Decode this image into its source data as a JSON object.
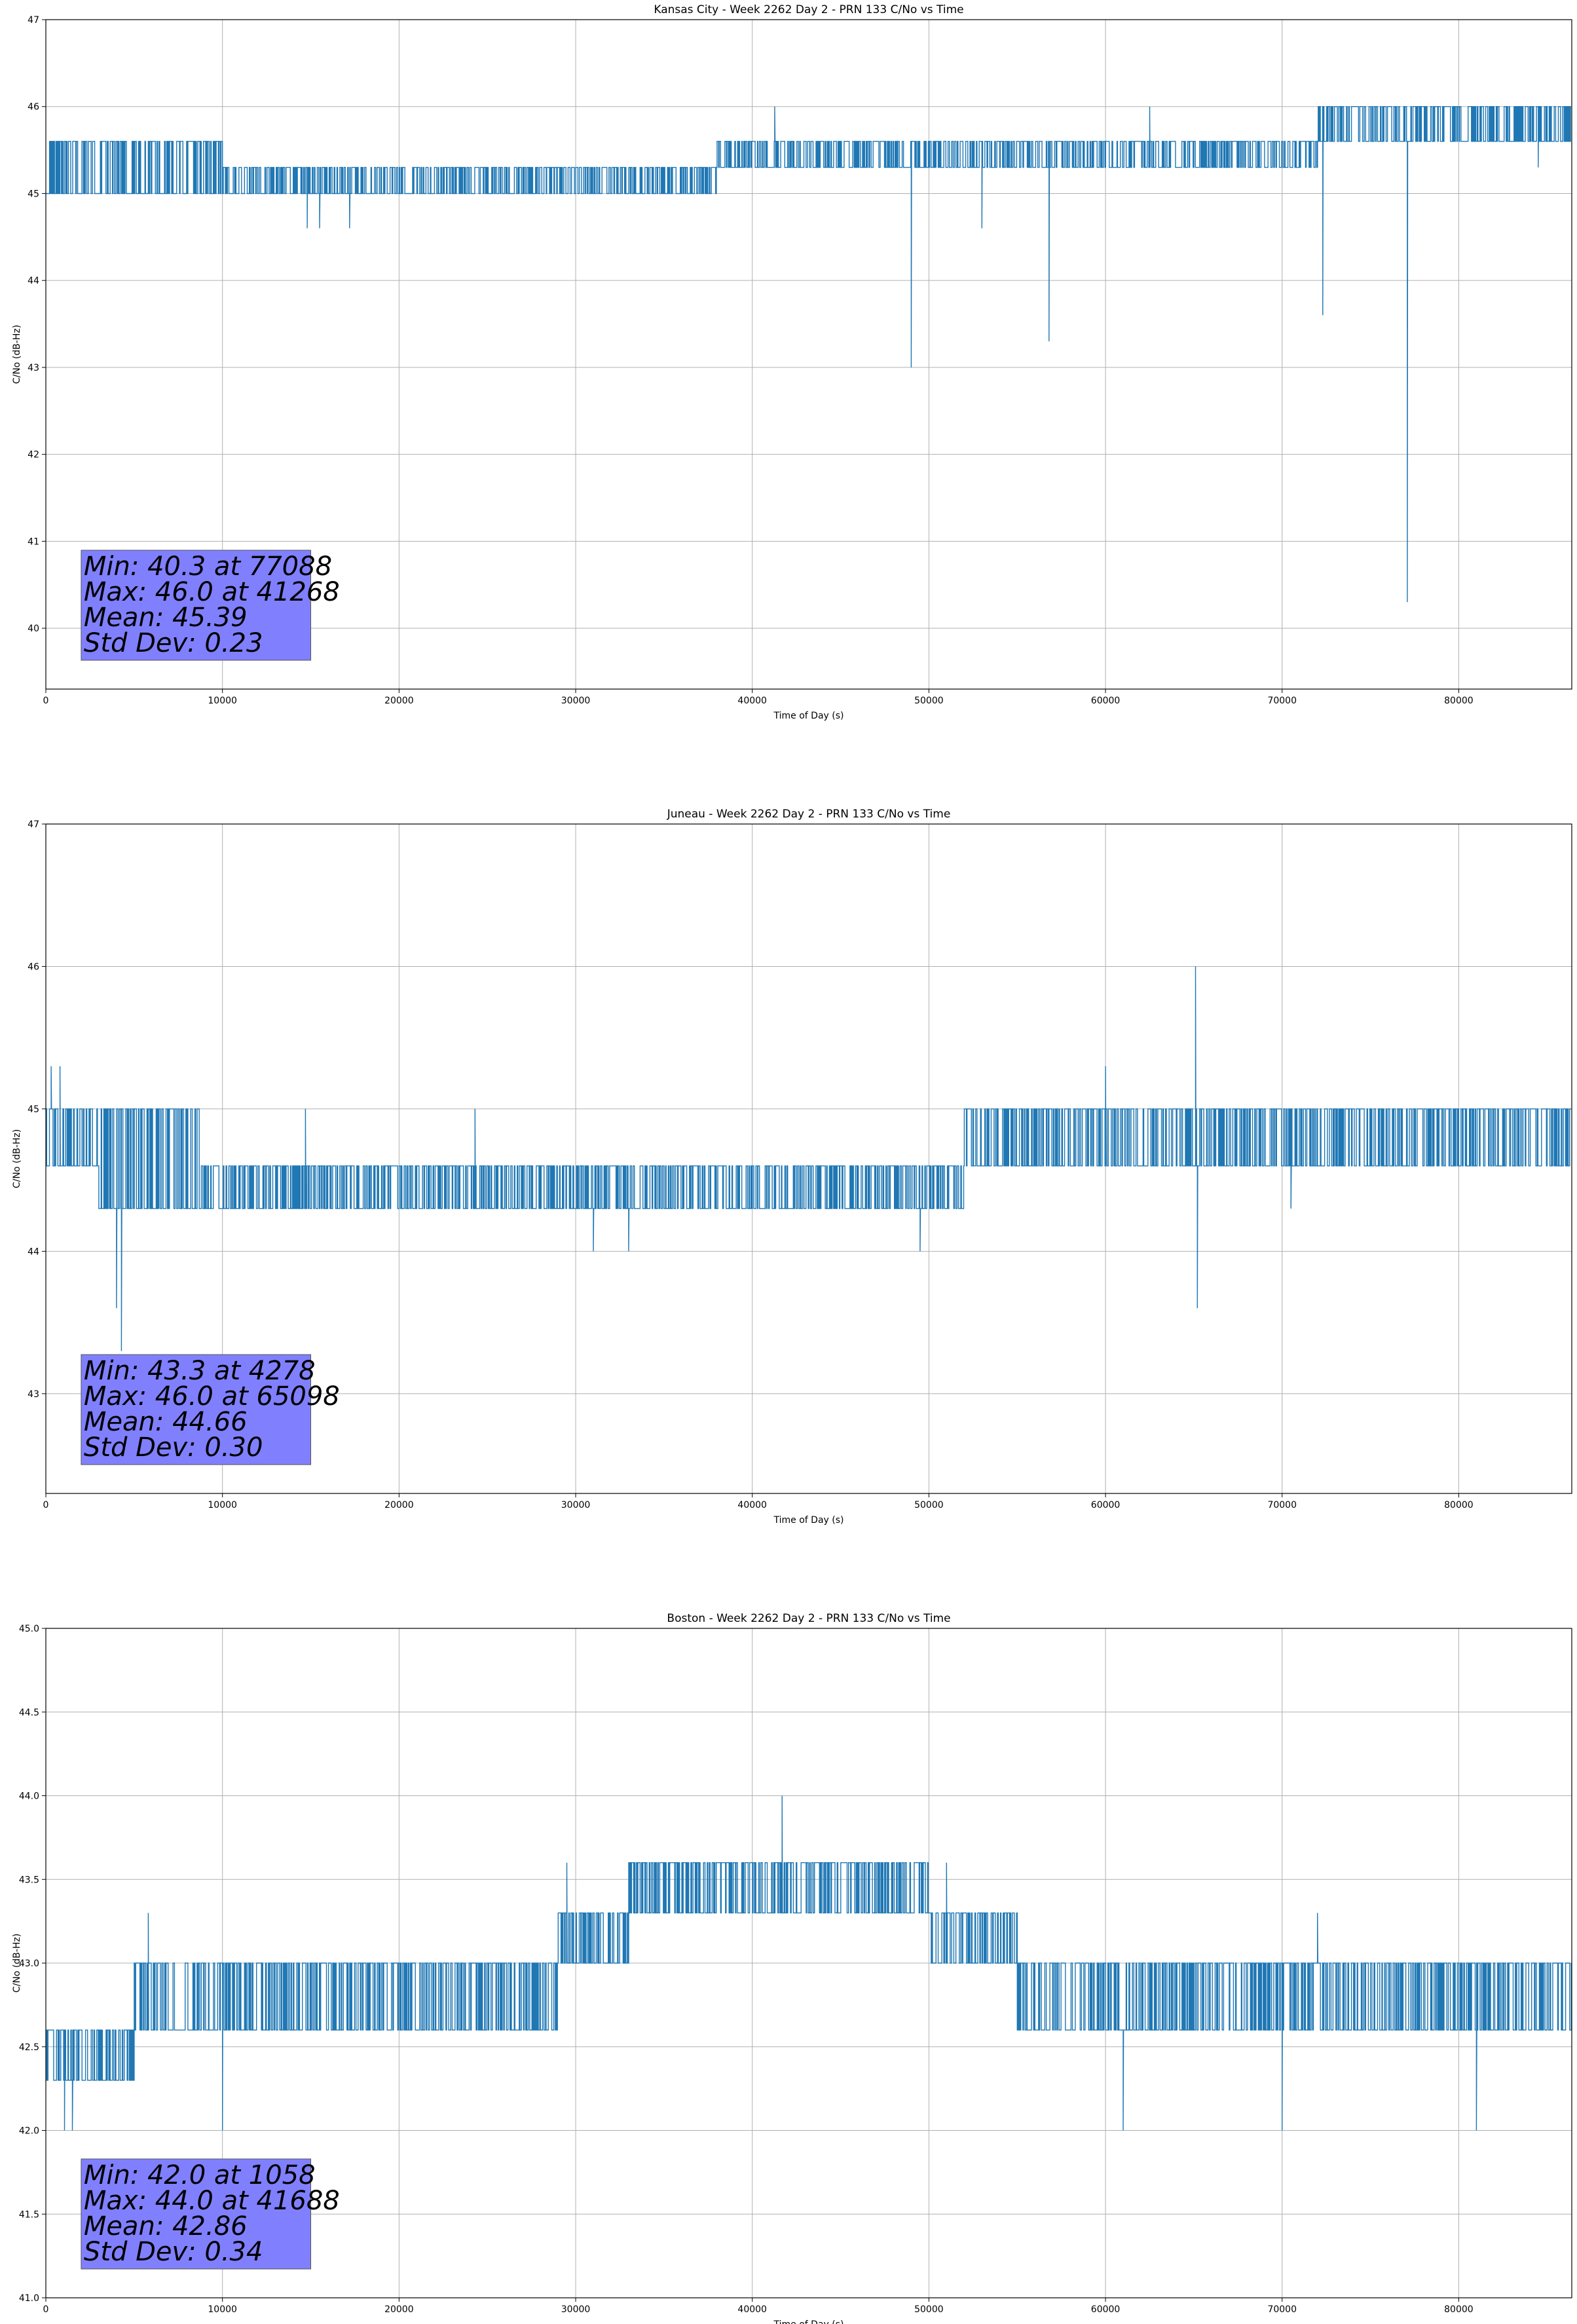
{
  "chart_data": [
    {
      "type": "line",
      "title": "Kansas City - Week 2262 Day 2 - PRN 133 C/No vs Time",
      "xlabel": "Time of Day (s)",
      "ylabel": "C/No (dB-Hz)",
      "xlim": [
        0,
        86400
      ],
      "ylim": [
        39.3,
        47
      ],
      "xticks": [
        0,
        10000,
        20000,
        30000,
        40000,
        50000,
        60000,
        70000,
        80000
      ],
      "yticks": [
        40,
        41,
        42,
        43,
        44,
        45,
        46,
        47
      ],
      "ytick_labels": [
        "40",
        "41",
        "42",
        "43",
        "44",
        "45",
        "46",
        "47"
      ],
      "grid": true,
      "series_color": "#1f77b4",
      "bands": [
        {
          "x": [
            0,
            10000
          ],
          "low": 45.0,
          "high": 45.6
        },
        {
          "x": [
            10000,
            38000
          ],
          "low": 45.0,
          "high": 45.3
        },
        {
          "x": [
            38000,
            72000
          ],
          "low": 45.3,
          "high": 45.6
        },
        {
          "x": [
            72000,
            86400
          ],
          "low": 45.6,
          "high": 46.0
        }
      ],
      "spikes": [
        {
          "x": 14800,
          "y": 44.6
        },
        {
          "x": 15500,
          "y": 44.6
        },
        {
          "x": 17200,
          "y": 44.6
        },
        {
          "x": 41268,
          "y": 46.0
        },
        {
          "x": 49000,
          "y": 43.0
        },
        {
          "x": 53000,
          "y": 44.6
        },
        {
          "x": 56800,
          "y": 43.3
        },
        {
          "x": 62500,
          "y": 46.0
        },
        {
          "x": 72300,
          "y": 43.6
        },
        {
          "x": 77088,
          "y": 40.3
        },
        {
          "x": 84500,
          "y": 45.3
        }
      ],
      "stats": [
        "Min: 40.3 at 77088",
        "Max: 46.0 at 41268",
        "Mean: 45.39",
        "Std Dev: 0.23"
      ]
    },
    {
      "type": "line",
      "title": "Juneau - Week 2262 Day 2 - PRN 133 C/No vs Time",
      "xlabel": "Time of Day (s)",
      "ylabel": "C/No (dB-Hz)",
      "xlim": [
        0,
        86400
      ],
      "ylim": [
        42.3,
        47
      ],
      "xticks": [
        0,
        10000,
        20000,
        30000,
        40000,
        50000,
        60000,
        70000,
        80000
      ],
      "yticks": [
        43,
        44,
        45,
        46,
        47
      ],
      "ytick_labels": [
        "43",
        "44",
        "45",
        "46",
        "47"
      ],
      "grid": true,
      "series_color": "#1f77b4",
      "bands": [
        {
          "x": [
            0,
            3000
          ],
          "low": 44.6,
          "high": 45.0
        },
        {
          "x": [
            3000,
            8800
          ],
          "low": 44.3,
          "high": 45.0
        },
        {
          "x": [
            8800,
            52000
          ],
          "low": 44.3,
          "high": 44.6
        },
        {
          "x": [
            52000,
            86400
          ],
          "low": 44.6,
          "high": 45.0
        }
      ],
      "spikes": [
        {
          "x": 300,
          "y": 45.3
        },
        {
          "x": 800,
          "y": 45.3
        },
        {
          "x": 4278,
          "y": 43.3
        },
        {
          "x": 4000,
          "y": 43.6
        },
        {
          "x": 14700,
          "y": 45.0
        },
        {
          "x": 24300,
          "y": 45.0
        },
        {
          "x": 31000,
          "y": 44.0
        },
        {
          "x": 33000,
          "y": 44.0
        },
        {
          "x": 49500,
          "y": 44.0
        },
        {
          "x": 65098,
          "y": 46.0
        },
        {
          "x": 65200,
          "y": 43.6
        },
        {
          "x": 60000,
          "y": 45.3
        },
        {
          "x": 70500,
          "y": 44.3
        }
      ],
      "stats": [
        "Min: 43.3 at 4278",
        "Max: 46.0 at 65098",
        "Mean: 44.66",
        "Std Dev: 0.30"
      ]
    },
    {
      "type": "line",
      "title": "Boston - Week 2262 Day 2 - PRN 133 C/No vs Time",
      "xlabel": "Time of Day (s)",
      "ylabel": "C/No (dB-Hz)",
      "xlim": [
        0,
        86400
      ],
      "ylim": [
        41.0,
        45.0
      ],
      "xticks": [
        0,
        10000,
        20000,
        30000,
        40000,
        50000,
        60000,
        70000,
        80000
      ],
      "yticks": [
        41.0,
        41.5,
        42.0,
        42.5,
        43.0,
        43.5,
        44.0,
        44.5,
        45.0
      ],
      "ytick_labels": [
        "41.0",
        "41.5",
        "42.0",
        "42.5",
        "43.0",
        "43.5",
        "44.0",
        "44.5",
        "45.0"
      ],
      "grid": true,
      "series_color": "#1f77b4",
      "bands": [
        {
          "x": [
            0,
            5000
          ],
          "low": 42.3,
          "high": 42.6
        },
        {
          "x": [
            5000,
            29000
          ],
          "low": 42.6,
          "high": 43.0
        },
        {
          "x": [
            29000,
            33000
          ],
          "low": 43.0,
          "high": 43.3
        },
        {
          "x": [
            33000,
            50000
          ],
          "low": 43.3,
          "high": 43.6
        },
        {
          "x": [
            50000,
            55000
          ],
          "low": 43.0,
          "high": 43.3
        },
        {
          "x": [
            55000,
            86400
          ],
          "low": 42.6,
          "high": 43.0
        }
      ],
      "spikes": [
        {
          "x": 1058,
          "y": 42.0
        },
        {
          "x": 1500,
          "y": 42.0
        },
        {
          "x": 10000,
          "y": 42.0
        },
        {
          "x": 5800,
          "y": 43.3
        },
        {
          "x": 41688,
          "y": 44.0
        },
        {
          "x": 29500,
          "y": 43.6
        },
        {
          "x": 51000,
          "y": 43.6
        },
        {
          "x": 61000,
          "y": 42.0
        },
        {
          "x": 70000,
          "y": 42.0
        },
        {
          "x": 81000,
          "y": 42.0
        },
        {
          "x": 72000,
          "y": 43.3
        }
      ],
      "stats": [
        "Min: 42.0 at 1058",
        "Max: 44.0 at 41688",
        "Mean: 42.86",
        "Std Dev: 0.34"
      ]
    }
  ]
}
